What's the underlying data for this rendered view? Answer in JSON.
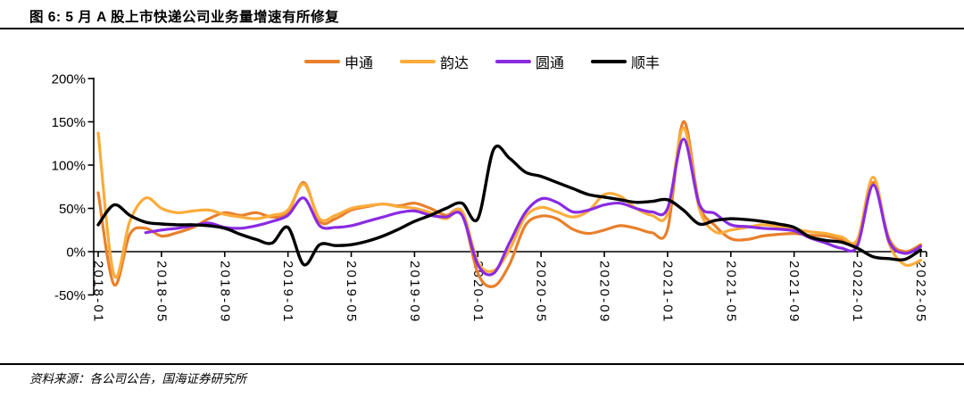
{
  "figure": {
    "title": "图 6: 5 月 A 股上市快递公司业务量增速有所修复",
    "source": "资料来源：各公司公告，国海证券研究所"
  },
  "chart_data": {
    "type": "line",
    "title": "图 6: 5 月 A 股上市快递公司业务量增速有所修复",
    "x_frequency": "monthly",
    "x": [
      "2018-01",
      "2018-02",
      "2018-03",
      "2018-04",
      "2018-05",
      "2018-06",
      "2018-07",
      "2018-08",
      "2018-09",
      "2018-10",
      "2018-11",
      "2018-12",
      "2019-01",
      "2019-02",
      "2019-03",
      "2019-04",
      "2019-05",
      "2019-06",
      "2019-07",
      "2019-08",
      "2019-09",
      "2019-10",
      "2019-11",
      "2019-12",
      "2020-01",
      "2020-02",
      "2020-03",
      "2020-04",
      "2020-05",
      "2020-06",
      "2020-07",
      "2020-08",
      "2020-09",
      "2020-10",
      "2020-11",
      "2020-12",
      "2021-01",
      "2021-02",
      "2021-03",
      "2021-04",
      "2021-05",
      "2021-06",
      "2021-07",
      "2021-08",
      "2021-09",
      "2021-10",
      "2021-11",
      "2021-12",
      "2022-01",
      "2022-02",
      "2022-03",
      "2022-04",
      "2022-05"
    ],
    "x_tick_labels": [
      "2018-01",
      "2018-05",
      "2018-09",
      "2019-01",
      "2019-05",
      "2019-09",
      "2020-01",
      "2020-05",
      "2020-09",
      "2021-01",
      "2021-05",
      "2021-09",
      "2022-01",
      "2022-05"
    ],
    "y_axis": {
      "unit": "%",
      "ticks": [
        200,
        150,
        100,
        50,
        0,
        -50
      ],
      "tick_labels": [
        "200%",
        "150%",
        "100%",
        "50%",
        "0%",
        "-50%"
      ],
      "min": -50,
      "max": 200
    },
    "grid": false,
    "legend_position": "top-center",
    "series": [
      {
        "name": "申通",
        "key": "shentong",
        "color": "#E8802C",
        "values": [
          68,
          -38,
          20,
          27,
          18,
          22,
          28,
          38,
          45,
          42,
          45,
          40,
          45,
          80,
          35,
          38,
          48,
          52,
          55,
          53,
          56,
          50,
          42,
          45,
          -25,
          -40,
          -15,
          30,
          41,
          38,
          26,
          21,
          25,
          30,
          27,
          22,
          26,
          150,
          55,
          30,
          15,
          14,
          18,
          20,
          21,
          19,
          18,
          14,
          12,
          80,
          15,
          0,
          8
        ]
      },
      {
        "name": "韵达",
        "key": "yunda",
        "color": "#FBAC3B",
        "values": [
          137,
          -27,
          35,
          62,
          50,
          45,
          47,
          48,
          43,
          40,
          38,
          42,
          48,
          78,
          38,
          42,
          50,
          53,
          55,
          52,
          50,
          45,
          38,
          47,
          -12,
          -22,
          2,
          40,
          51,
          46,
          40,
          47,
          66,
          64,
          50,
          42,
          44,
          143,
          50,
          23,
          25,
          28,
          31,
          29,
          26,
          23,
          21,
          17,
          14,
          86,
          10,
          -15,
          -10
        ]
      },
      {
        "name": "圆通",
        "key": "yuantong",
        "color": "#8A2BE2",
        "values": [
          null,
          null,
          null,
          22,
          25,
          27,
          30,
          33,
          28,
          27,
          30,
          35,
          42,
          62,
          30,
          28,
          30,
          35,
          40,
          45,
          47,
          42,
          40,
          42,
          -15,
          -25,
          10,
          45,
          61,
          57,
          46,
          48,
          54,
          56,
          50,
          46,
          50,
          130,
          55,
          44,
          31,
          29,
          27,
          26,
          24,
          16,
          10,
          4,
          7,
          77,
          12,
          -2,
          6
        ]
      },
      {
        "name": "顺丰",
        "key": "shunfeng",
        "color": "#000000",
        "values": [
          31,
          54,
          42,
          34,
          32,
          31,
          31,
          30,
          27,
          20,
          14,
          10,
          28,
          -15,
          8,
          7,
          8,
          12,
          18,
          26,
          35,
          42,
          50,
          56,
          38,
          118,
          108,
          92,
          87,
          80,
          73,
          66,
          63,
          60,
          57,
          58,
          60,
          48,
          32,
          36,
          38,
          37,
          35,
          32,
          28,
          17,
          13,
          11,
          4,
          -6,
          -8,
          -9,
          2
        ]
      }
    ]
  }
}
